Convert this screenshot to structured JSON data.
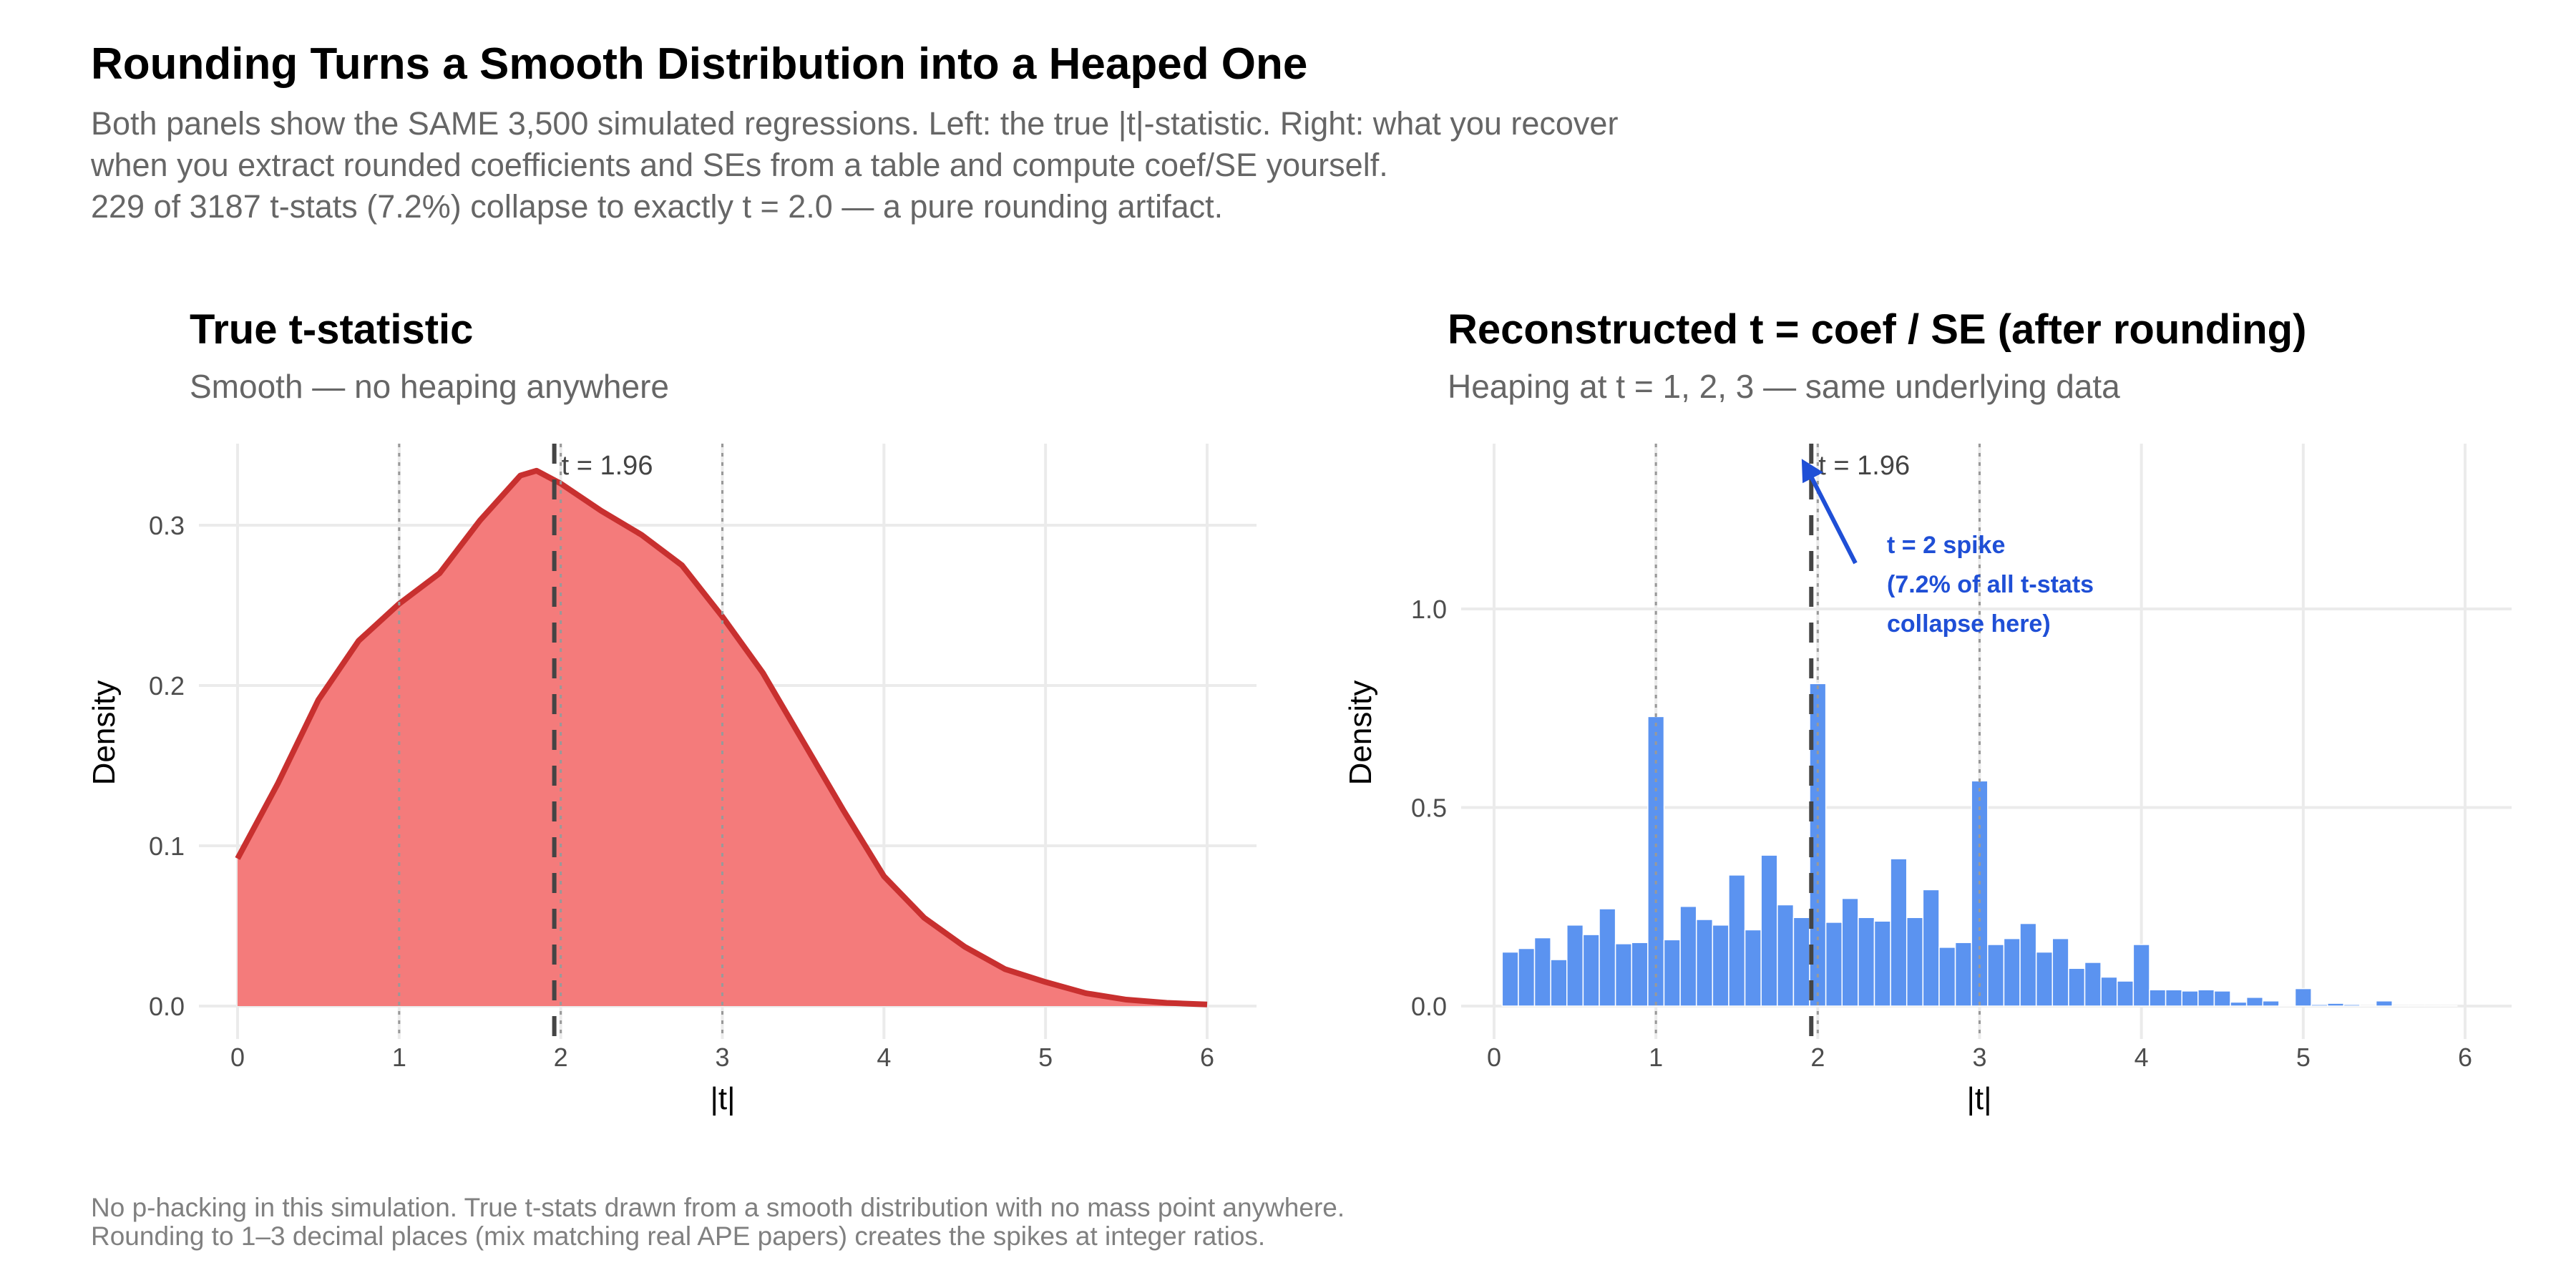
{
  "header": {
    "title": "Rounding Turns a Smooth Distribution into a Heaped One",
    "subtitle_lines": [
      "Both panels show the SAME 3,500 simulated regressions. Left: the true |t|-statistic. Right: what you recover",
      "when you extract rounded coefficients and SEs from a table and compute coef/SE yourself.",
      "229 of 3187 t-stats (7.2%) collapse to exactly t = 2.0 — a pure rounding artifact."
    ]
  },
  "footer": {
    "lines": [
      "No p-hacking in this simulation. True t-stats drawn from a smooth distribution with no mass point anywhere.",
      "Rounding to 1–3 decimal places (mix matching real APE papers) creates the spikes at integer ratios."
    ]
  },
  "colors": {
    "density_fill": "#f47b7b",
    "density_line": "#c8302f",
    "bars": "#5b93f0",
    "annotation": "#1f4fd6",
    "ref_line": "#444444"
  },
  "chart_data": [
    {
      "type": "area",
      "title": "True t-statistic",
      "subtitle": "Smooth — no heaping anywhere",
      "xlabel": "|t|",
      "ylabel": "Density",
      "xlim": [
        0,
        6
      ],
      "ylim": [
        0,
        0.35
      ],
      "xticks": [
        "0",
        "1",
        "2",
        "3",
        "4",
        "5",
        "6"
      ],
      "yticks": [
        "0.0",
        "0.1",
        "0.2",
        "0.3"
      ],
      "ytick_values": [
        0,
        0.1,
        0.2,
        0.3
      ],
      "grid": true,
      "ref_line": {
        "x": 1.96,
        "label": "t = 1.96"
      },
      "dotted_lines": [
        1,
        2,
        3
      ],
      "x": [
        0,
        0.25,
        0.5,
        0.75,
        1,
        1.25,
        1.5,
        1.75,
        1.85,
        2,
        2.25,
        2.5,
        2.75,
        3,
        3.25,
        3.5,
        3.75,
        4,
        4.25,
        4.5,
        4.75,
        5,
        5.25,
        5.5,
        5.75,
        6
      ],
      "y": [
        0.092,
        0.139,
        0.191,
        0.228,
        0.251,
        0.27,
        0.303,
        0.331,
        0.334,
        0.326,
        0.309,
        0.294,
        0.275,
        0.243,
        0.208,
        0.165,
        0.122,
        0.081,
        0.055,
        0.037,
        0.023,
        0.015,
        0.008,
        0.004,
        0.002,
        0.001
      ]
    },
    {
      "type": "bar",
      "title": "Reconstructed t = coef / SE  (after rounding)",
      "subtitle": "Heaping at t = 1, 2, 3 — same underlying data",
      "xlabel": "|t|",
      "ylabel": "Density",
      "xlim": [
        0,
        6
      ],
      "ylim": [
        0,
        1.2
      ],
      "xticks": [
        "0",
        "1",
        "2",
        "3",
        "4",
        "5",
        "6"
      ],
      "yticks": [
        "0.0",
        "0.5",
        "1.0"
      ],
      "ytick_values": [
        0,
        0.5,
        1.0
      ],
      "grid": true,
      "bin_width": 0.1,
      "ref_line": {
        "x": 1.96,
        "label": "t = 1.96"
      },
      "dotted_lines": [
        1,
        2,
        3
      ],
      "annotation": {
        "lines": [
          "t = 2 spike",
          "(7.2% of all t-stats",
          "collapse here)"
        ],
        "points_to_x": 1.96
      },
      "bin_centers": [
        0.1,
        0.2,
        0.3,
        0.4,
        0.5,
        0.6,
        0.7,
        0.8,
        0.9,
        1.0,
        1.1,
        1.2,
        1.3,
        1.4,
        1.5,
        1.6,
        1.7,
        1.8,
        1.9,
        2.0,
        2.1,
        2.2,
        2.3,
        2.4,
        2.5,
        2.6,
        2.7,
        2.8,
        2.9,
        3.0,
        3.1,
        3.2,
        3.3,
        3.4,
        3.5,
        3.6,
        3.7,
        3.8,
        3.9,
        4.0,
        4.1,
        4.2,
        4.3,
        4.4,
        4.5,
        4.6,
        4.7,
        4.8,
        4.9,
        5.0,
        5.1,
        5.2,
        5.3,
        5.4,
        5.5,
        5.6,
        5.7,
        5.8,
        5.9
      ],
      "values": [
        0.136,
        0.145,
        0.172,
        0.117,
        0.204,
        0.18,
        0.245,
        0.157,
        0.16,
        0.729,
        0.167,
        0.251,
        0.218,
        0.204,
        0.33,
        0.192,
        0.38,
        0.255,
        0.223,
        0.812,
        0.211,
        0.271,
        0.223,
        0.214,
        0.371,
        0.223,
        0.293,
        0.148,
        0.16,
        0.567,
        0.155,
        0.17,
        0.208,
        0.136,
        0.17,
        0.095,
        0.11,
        0.073,
        0.063,
        0.155,
        0.041,
        0.041,
        0.038,
        0.041,
        0.038,
        0.01,
        0.022,
        0.013,
        0.002,
        0.044,
        0.004,
        0.007,
        0.004,
        0.001,
        0.013,
        0.001,
        0.001,
        0.001,
        0.001
      ]
    }
  ]
}
